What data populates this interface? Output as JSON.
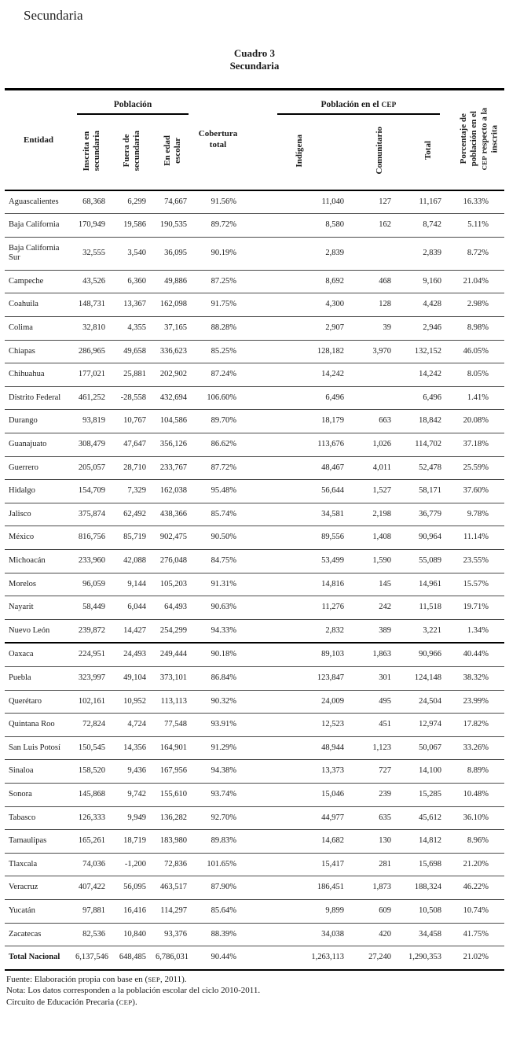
{
  "page": {
    "heading": "Secundaria",
    "table_title_line1": "Cuadro 3",
    "table_title_line2": "Secundaria"
  },
  "table": {
    "entidad_header": "Entidad",
    "group_poblacion": "Población",
    "group_cep": {
      "pre": "Población en el ",
      "sc": "CEP"
    },
    "col_inscrita": "Inscrita en\nsecundaria",
    "col_fuera": "Fuera de\nsecundaria",
    "col_edad": "En edad\nescolar",
    "col_cobertura": "Cobertura\ntotal",
    "col_indigena": "Indígena",
    "col_comunitario": "Comunitario",
    "col_total": "Total",
    "col_porcentaje": {
      "pre": "Porcentaje de\npoblación en el\n",
      "sc": "CEP",
      "post": " respecto a la\ninscrita"
    }
  },
  "rows": [
    {
      "entidad": "Aguascalientes",
      "inscrita": "68,368",
      "fuera": "6,299",
      "edad": "74,667",
      "cobertura": "91.56%",
      "indigena": "11,040",
      "comunitario": "127",
      "total": "11,167",
      "porcentaje": "16.33%"
    },
    {
      "entidad": "Baja California",
      "inscrita": "170,949",
      "fuera": "19,586",
      "edad": "190,535",
      "cobertura": "89.72%",
      "indigena": "8,580",
      "comunitario": "162",
      "total": "8,742",
      "porcentaje": "5.11%"
    },
    {
      "entidad": "Baja California Sur",
      "inscrita": "32,555",
      "fuera": "3,540",
      "edad": "36,095",
      "cobertura": "90.19%",
      "indigena": "2,839",
      "comunitario": "",
      "total": "2,839",
      "porcentaje": "8.72%"
    },
    {
      "entidad": "Campeche",
      "inscrita": "43,526",
      "fuera": "6,360",
      "edad": "49,886",
      "cobertura": "87.25%",
      "indigena": "8,692",
      "comunitario": "468",
      "total": "9,160",
      "porcentaje": "21.04%"
    },
    {
      "entidad": "Coahuila",
      "inscrita": "148,731",
      "fuera": "13,367",
      "edad": "162,098",
      "cobertura": "91.75%",
      "indigena": "4,300",
      "comunitario": "128",
      "total": "4,428",
      "porcentaje": "2.98%"
    },
    {
      "entidad": "Colima",
      "inscrita": "32,810",
      "fuera": "4,355",
      "edad": "37,165",
      "cobertura": "88.28%",
      "indigena": "2,907",
      "comunitario": "39",
      "total": "2,946",
      "porcentaje": "8.98%"
    },
    {
      "entidad": "Chiapas",
      "inscrita": "286,965",
      "fuera": "49,658",
      "edad": "336,623",
      "cobertura": "85.25%",
      "indigena": "128,182",
      "comunitario": "3,970",
      "total": "132,152",
      "porcentaje": "46.05%"
    },
    {
      "entidad": "Chihuahua",
      "inscrita": "177,021",
      "fuera": "25,881",
      "edad": "202,902",
      "cobertura": "87.24%",
      "indigena": "14,242",
      "comunitario": "",
      "total": "14,242",
      "porcentaje": "8.05%"
    },
    {
      "entidad": "Distrito Federal",
      "inscrita": "461,252",
      "fuera": "-28,558",
      "edad": "432,694",
      "cobertura": "106.60%",
      "indigena": "6,496",
      "comunitario": "",
      "total": "6,496",
      "porcentaje": "1.41%"
    },
    {
      "entidad": "Durango",
      "inscrita": "93,819",
      "fuera": "10,767",
      "edad": "104,586",
      "cobertura": "89.70%",
      "indigena": "18,179",
      "comunitario": "663",
      "total": "18,842",
      "porcentaje": "20.08%"
    },
    {
      "entidad": "Guanajuato",
      "inscrita": "308,479",
      "fuera": "47,647",
      "edad": "356,126",
      "cobertura": "86.62%",
      "indigena": "113,676",
      "comunitario": "1,026",
      "total": "114,702",
      "porcentaje": "37.18%"
    },
    {
      "entidad": "Guerrero",
      "inscrita": "205,057",
      "fuera": "28,710",
      "edad": "233,767",
      "cobertura": "87.72%",
      "indigena": "48,467",
      "comunitario": "4,011",
      "total": "52,478",
      "porcentaje": "25.59%"
    },
    {
      "entidad": "Hidalgo",
      "inscrita": "154,709",
      "fuera": "7,329",
      "edad": "162,038",
      "cobertura": "95.48%",
      "indigena": "56,644",
      "comunitario": "1,527",
      "total": "58,171",
      "porcentaje": "37.60%"
    },
    {
      "entidad": "Jalisco",
      "inscrita": "375,874",
      "fuera": "62,492",
      "edad": "438,366",
      "cobertura": "85.74%",
      "indigena": "34,581",
      "comunitario": "2,198",
      "total": "36,779",
      "porcentaje": "9.78%"
    },
    {
      "entidad": "México",
      "inscrita": "816,756",
      "fuera": "85,719",
      "edad": "902,475",
      "cobertura": "90.50%",
      "indigena": "89,556",
      "comunitario": "1,408",
      "total": "90,964",
      "porcentaje": "11.14%"
    },
    {
      "entidad": "Michoacán",
      "inscrita": "233,960",
      "fuera": "42,088",
      "edad": "276,048",
      "cobertura": "84.75%",
      "indigena": "53,499",
      "comunitario": "1,590",
      "total": "55,089",
      "porcentaje": "23.55%"
    },
    {
      "entidad": "Morelos",
      "inscrita": "96,059",
      "fuera": "9,144",
      "edad": "105,203",
      "cobertura": "91.31%",
      "indigena": "14,816",
      "comunitario": "145",
      "total": "14,961",
      "porcentaje": "15.57%"
    },
    {
      "entidad": "Nayarit",
      "inscrita": "58,449",
      "fuera": "6,044",
      "edad": "64,493",
      "cobertura": "90.63%",
      "indigena": "11,276",
      "comunitario": "242",
      "total": "11,518",
      "porcentaje": "19.71%"
    },
    {
      "entidad": "Nuevo León",
      "inscrita": "239,872",
      "fuera": "14,427",
      "edad": "254,299",
      "cobertura": "94.33%",
      "indigena": "2,832",
      "comunitario": "389",
      "total": "3,221",
      "porcentaje": "1.34%"
    },
    {
      "entidad": "Oaxaca",
      "inscrita": "224,951",
      "fuera": "24,493",
      "edad": "249,444",
      "cobertura": "90.18%",
      "indigena": "89,103",
      "comunitario": "1,863",
      "total": "90,966",
      "porcentaje": "40.44%",
      "section_break_before": true
    },
    {
      "entidad": "Puebla",
      "inscrita": "323,997",
      "fuera": "49,104",
      "edad": "373,101",
      "cobertura": "86.84%",
      "indigena": "123,847",
      "comunitario": "301",
      "total": "124,148",
      "porcentaje": "38.32%"
    },
    {
      "entidad": "Querétaro",
      "inscrita": "102,161",
      "fuera": "10,952",
      "edad": "113,113",
      "cobertura": "90.32%",
      "indigena": "24,009",
      "comunitario": "495",
      "total": "24,504",
      "porcentaje": "23.99%"
    },
    {
      "entidad": "Quintana Roo",
      "inscrita": "72,824",
      "fuera": "4,724",
      "edad": "77,548",
      "cobertura": "93.91%",
      "indigena": "12,523",
      "comunitario": "451",
      "total": "12,974",
      "porcentaje": "17.82%"
    },
    {
      "entidad": "San Luis Potosí",
      "inscrita": "150,545",
      "fuera": "14,356",
      "edad": "164,901",
      "cobertura": "91.29%",
      "indigena": "48,944",
      "comunitario": "1,123",
      "total": "50,067",
      "porcentaje": "33.26%"
    },
    {
      "entidad": "Sinaloa",
      "inscrita": "158,520",
      "fuera": "9,436",
      "edad": "167,956",
      "cobertura": "94.38%",
      "indigena": "13,373",
      "comunitario": "727",
      "total": "14,100",
      "porcentaje": "8.89%"
    },
    {
      "entidad": "Sonora",
      "inscrita": "145,868",
      "fuera": "9,742",
      "edad": "155,610",
      "cobertura": "93.74%",
      "indigena": "15,046",
      "comunitario": "239",
      "total": "15,285",
      "porcentaje": "10.48%"
    },
    {
      "entidad": "Tabasco",
      "inscrita": "126,333",
      "fuera": "9,949",
      "edad": "136,282",
      "cobertura": "92.70%",
      "indigena": "44,977",
      "comunitario": "635",
      "total": "45,612",
      "porcentaje": "36.10%"
    },
    {
      "entidad": "Tamaulipas",
      "inscrita": "165,261",
      "fuera": "18,719",
      "edad": "183,980",
      "cobertura": "89.83%",
      "indigena": "14,682",
      "comunitario": "130",
      "total": "14,812",
      "porcentaje": "8.96%"
    },
    {
      "entidad": "Tlaxcala",
      "inscrita": "74,036",
      "fuera": "-1,200",
      "edad": "72,836",
      "cobertura": "101.65%",
      "indigena": "15,417",
      "comunitario": "281",
      "total": "15,698",
      "porcentaje": "21.20%"
    },
    {
      "entidad": "Veracruz",
      "inscrita": "407,422",
      "fuera": "56,095",
      "edad": "463,517",
      "cobertura": "87.90%",
      "indigena": "186,451",
      "comunitario": "1,873",
      "total": "188,324",
      "porcentaje": "46.22%"
    },
    {
      "entidad": "Yucatán",
      "inscrita": "97,881",
      "fuera": "16,416",
      "edad": "114,297",
      "cobertura": "85.64%",
      "indigena": "9,899",
      "comunitario": "609",
      "total": "10,508",
      "porcentaje": "10.74%"
    },
    {
      "entidad": "Zacatecas",
      "inscrita": "82,536",
      "fuera": "10,840",
      "edad": "93,376",
      "cobertura": "88.39%",
      "indigena": "34,038",
      "comunitario": "420",
      "total": "34,458",
      "porcentaje": "41.75%"
    }
  ],
  "total_row": {
    "entidad": "Total Nacional",
    "inscrita": "6,137,546",
    "fuera": "648,485",
    "edad": "6,786,031",
    "cobertura": "90.44%",
    "indigena": "1,263,113",
    "comunitario": "27,240",
    "total": "1,290,353",
    "porcentaje": "21.02%"
  },
  "footer": {
    "fuente": {
      "pre": "Fuente: Elaboración propia con base en (",
      "sc": "SEP",
      "post": ", 2011)."
    },
    "nota": "Nota: Los datos corresponden a la población escolar del ciclo 2010-2011.",
    "cep": {
      "pre": "Circuito de Educación Precaria (",
      "sc": "CEP",
      "post": ")."
    }
  }
}
